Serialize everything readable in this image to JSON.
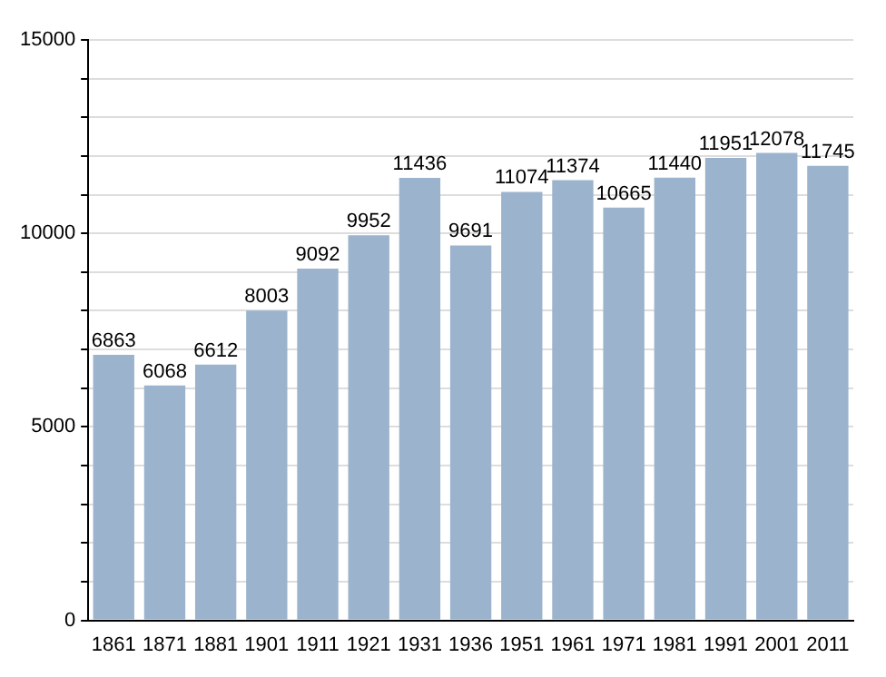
{
  "chart_data": {
    "type": "bar",
    "categories": [
      "1861",
      "1871",
      "1881",
      "1901",
      "1911",
      "1921",
      "1931",
      "1936",
      "1951",
      "1961",
      "1971",
      "1981",
      "1991",
      "2001",
      "2011"
    ],
    "values": [
      6863,
      6068,
      6612,
      8003,
      9092,
      9952,
      11436,
      9691,
      11074,
      11374,
      10665,
      11440,
      11951,
      12078,
      11745
    ],
    "color": "#9bb3cc",
    "ylim": [
      0,
      15000
    ],
    "yticks": [
      0,
      {
        "value": 1000,
        "label": null
      },
      {
        "value": 2000,
        "label": null
      },
      {
        "value": 3000,
        "label": null
      },
      {
        "value": 4000,
        "label": null
      },
      5000,
      {
        "value": 6000,
        "label": null
      },
      {
        "value": 7000,
        "label": null
      },
      {
        "value": 8000,
        "label": null
      },
      {
        "value": 9000,
        "label": null
      },
      10000,
      {
        "value": 11000,
        "label": null
      },
      {
        "value": 12000,
        "label": null
      },
      {
        "value": 13000,
        "label": null
      },
      {
        "value": 14000,
        "label": null
      },
      15000
    ],
    "grid": "y",
    "data_labels": true
  }
}
